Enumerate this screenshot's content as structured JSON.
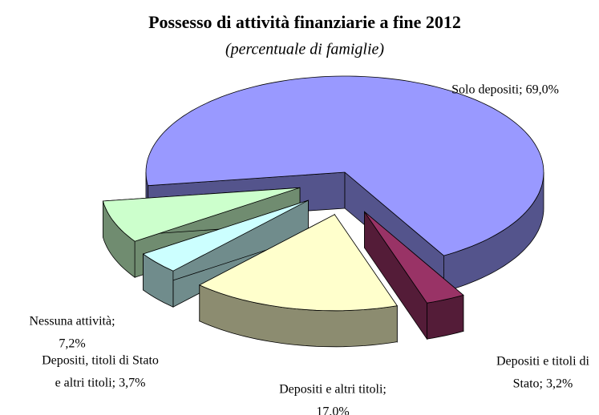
{
  "chart_data": {
    "type": "pie3d",
    "title": "Possesso di attività finanziarie a fine 2012",
    "subtitle": "(percentuale di famiglie)",
    "values": [
      69.0,
      3.2,
      17.0,
      3.7,
      7.2
    ],
    "labels": [
      [
        "Solo depositi; 69,0%"
      ],
      [
        "Depositi e titoli di",
        "Stato; 3,2%"
      ],
      [
        "Depositi e altri titoli;",
        "17,0%"
      ],
      [
        "Depositi, titoli di Stato",
        "e altri titoli; 3,7%"
      ],
      [
        "Nessuna attività;",
        "7,2%"
      ]
    ],
    "colors": [
      "#9999ff",
      "#993366",
      "#ffffcc",
      "#ccffff",
      "#ccffcc"
    ]
  }
}
